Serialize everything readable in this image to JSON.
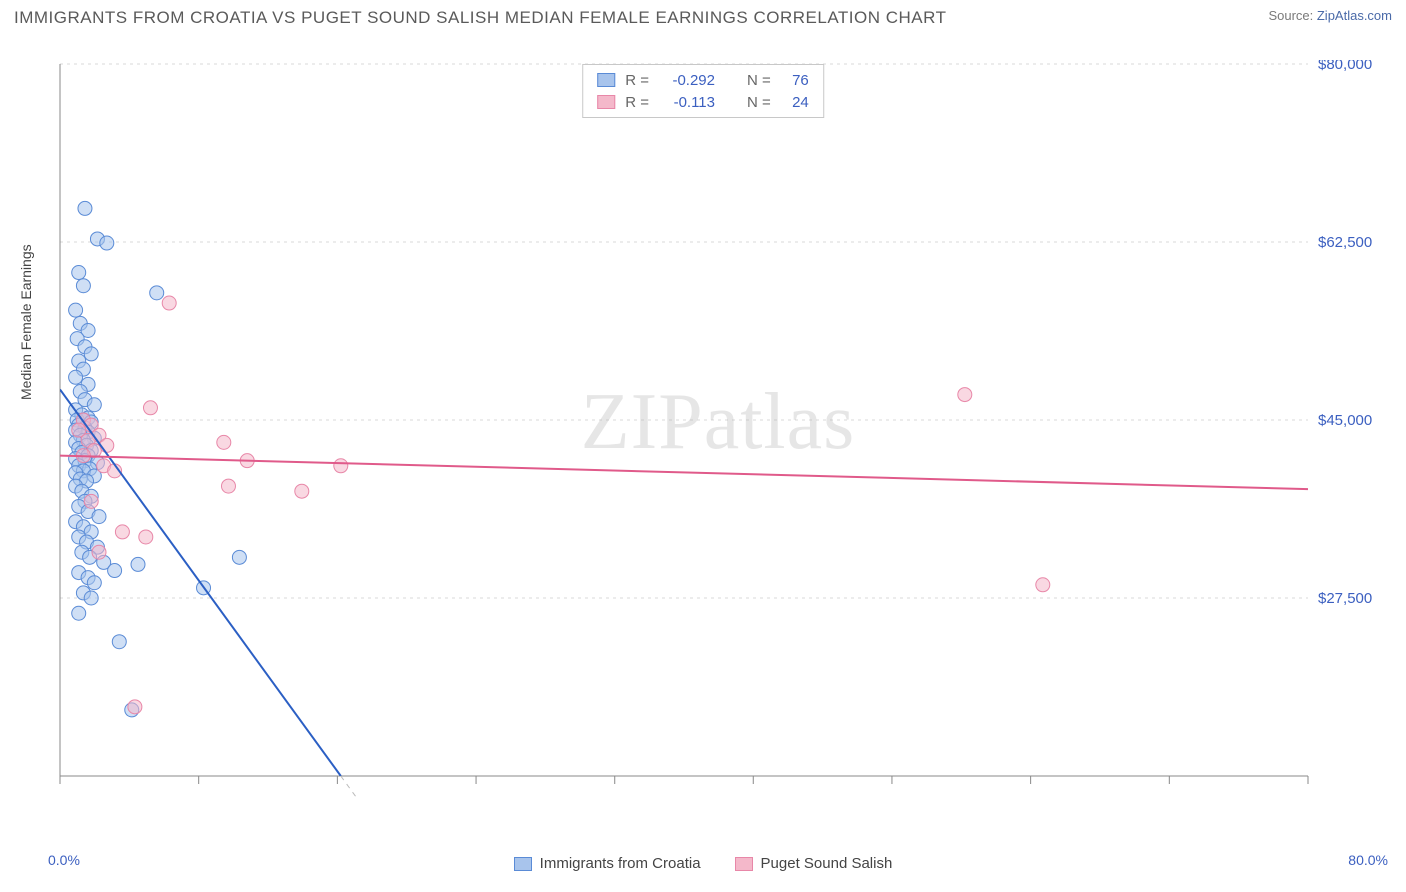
{
  "title": "IMMIGRANTS FROM CROATIA VS PUGET SOUND SALISH MEDIAN FEMALE EARNINGS CORRELATION CHART",
  "source_label": "Source: ",
  "source_name": "ZipAtlas.com",
  "watermark_zip": "ZIP",
  "watermark_atlas": "atlas",
  "ylabel": "Median Female Earnings",
  "chart": {
    "type": "scatter",
    "background_color": "#ffffff",
    "grid_color": "#d8d8d8",
    "axis_line_color": "#888888",
    "xlim": [
      0,
      80
    ],
    "ylim": [
      10000,
      80000
    ],
    "x_tick_positions": [
      0,
      8.89,
      17.78,
      26.67,
      35.56,
      44.44,
      53.33,
      62.22,
      71.11,
      80
    ],
    "x_tick_labels_shown": {
      "first": "0.0%",
      "last": "80.0%"
    },
    "y_grid_values": [
      27500,
      45000,
      62500,
      80000
    ],
    "y_grid_labels": [
      "$27,500",
      "$45,000",
      "$62,500",
      "$80,000"
    ],
    "y_label_color": "#3b5fc0",
    "x_label_color": "#3b5fc0",
    "marker_radius": 7,
    "marker_opacity": 0.55,
    "series": [
      {
        "name": "Immigrants from Croatia",
        "color_fill": "#a8c4ec",
        "color_stroke": "#5a8bd6",
        "line_color": "#2b5fc4",
        "R_label": "R =",
        "R_value": "-0.292",
        "N_label": "N =",
        "N_value": "76",
        "trend": {
          "x1": 0,
          "y1": 48000,
          "x2": 18,
          "y2": 10000,
          "dashed_extension": true
        },
        "points": [
          [
            1.6,
            65800
          ],
          [
            2.4,
            62800
          ],
          [
            3.0,
            62400
          ],
          [
            1.2,
            59500
          ],
          [
            1.5,
            58200
          ],
          [
            6.2,
            57500
          ],
          [
            1.0,
            55800
          ],
          [
            1.3,
            54500
          ],
          [
            1.8,
            53800
          ],
          [
            1.1,
            53000
          ],
          [
            1.6,
            52200
          ],
          [
            2.0,
            51500
          ],
          [
            1.2,
            50800
          ],
          [
            1.5,
            50000
          ],
          [
            1.0,
            49200
          ],
          [
            1.8,
            48500
          ],
          [
            1.3,
            47800
          ],
          [
            1.6,
            47000
          ],
          [
            2.2,
            46500
          ],
          [
            1.0,
            46000
          ],
          [
            1.4,
            45500
          ],
          [
            1.8,
            45200
          ],
          [
            1.1,
            45000
          ],
          [
            1.5,
            45000
          ],
          [
            2.0,
            44800
          ],
          [
            1.2,
            44500
          ],
          [
            1.6,
            44200
          ],
          [
            1.0,
            44000
          ],
          [
            1.8,
            43800
          ],
          [
            1.3,
            43500
          ],
          [
            2.2,
            43200
          ],
          [
            1.5,
            43000
          ],
          [
            1.0,
            42800
          ],
          [
            1.7,
            42500
          ],
          [
            1.2,
            42200
          ],
          [
            2.0,
            42000
          ],
          [
            1.4,
            41800
          ],
          [
            1.8,
            41500
          ],
          [
            1.0,
            41200
          ],
          [
            1.6,
            41000
          ],
          [
            2.4,
            40800
          ],
          [
            1.2,
            40500
          ],
          [
            1.9,
            40200
          ],
          [
            1.5,
            40000
          ],
          [
            1.0,
            39800
          ],
          [
            2.2,
            39500
          ],
          [
            1.3,
            39200
          ],
          [
            1.7,
            39000
          ],
          [
            1.0,
            38500
          ],
          [
            1.4,
            38000
          ],
          [
            2.0,
            37500
          ],
          [
            1.6,
            37000
          ],
          [
            1.2,
            36500
          ],
          [
            1.8,
            36000
          ],
          [
            2.5,
            35500
          ],
          [
            1.0,
            35000
          ],
          [
            1.5,
            34500
          ],
          [
            2.0,
            34000
          ],
          [
            1.2,
            33500
          ],
          [
            1.7,
            33000
          ],
          [
            2.4,
            32500
          ],
          [
            1.4,
            32000
          ],
          [
            1.9,
            31500
          ],
          [
            2.8,
            31000
          ],
          [
            5.0,
            30800
          ],
          [
            3.5,
            30200
          ],
          [
            1.2,
            30000
          ],
          [
            1.8,
            29500
          ],
          [
            2.2,
            29000
          ],
          [
            9.2,
            28500
          ],
          [
            1.5,
            28000
          ],
          [
            2.0,
            27500
          ],
          [
            1.2,
            26000
          ],
          [
            3.8,
            23200
          ],
          [
            4.6,
            16500
          ],
          [
            11.5,
            31500
          ]
        ]
      },
      {
        "name": "Puget Sound Salish",
        "color_fill": "#f4b8ca",
        "color_stroke": "#e887a8",
        "line_color": "#e05a8a",
        "R_label": "R =",
        "R_value": "-0.113",
        "N_label": "N =",
        "N_value": "24",
        "trend": {
          "x1": 0,
          "y1": 41500,
          "x2": 80,
          "y2": 38200,
          "dashed_extension": false
        },
        "points": [
          [
            7.0,
            56500
          ],
          [
            5.8,
            46200
          ],
          [
            1.5,
            45000
          ],
          [
            2.0,
            44500
          ],
          [
            1.2,
            44000
          ],
          [
            2.5,
            43500
          ],
          [
            1.8,
            43000
          ],
          [
            3.0,
            42500
          ],
          [
            10.5,
            42800
          ],
          [
            2.2,
            42000
          ],
          [
            1.5,
            41500
          ],
          [
            12.0,
            41000
          ],
          [
            2.8,
            40500
          ],
          [
            3.5,
            40000
          ],
          [
            10.8,
            38500
          ],
          [
            15.5,
            38000
          ],
          [
            18.0,
            40500
          ],
          [
            2.0,
            37000
          ],
          [
            4.0,
            34000
          ],
          [
            5.5,
            33500
          ],
          [
            2.5,
            32000
          ],
          [
            58.0,
            47500
          ],
          [
            63.0,
            28800
          ],
          [
            4.8,
            16800
          ]
        ]
      }
    ]
  },
  "bottom_legend": [
    {
      "label": "Immigrants from Croatia",
      "fill": "#a8c4ec",
      "stroke": "#5a8bd6"
    },
    {
      "label": "Puget Sound Salish",
      "fill": "#f4b8ca",
      "stroke": "#e887a8"
    }
  ]
}
